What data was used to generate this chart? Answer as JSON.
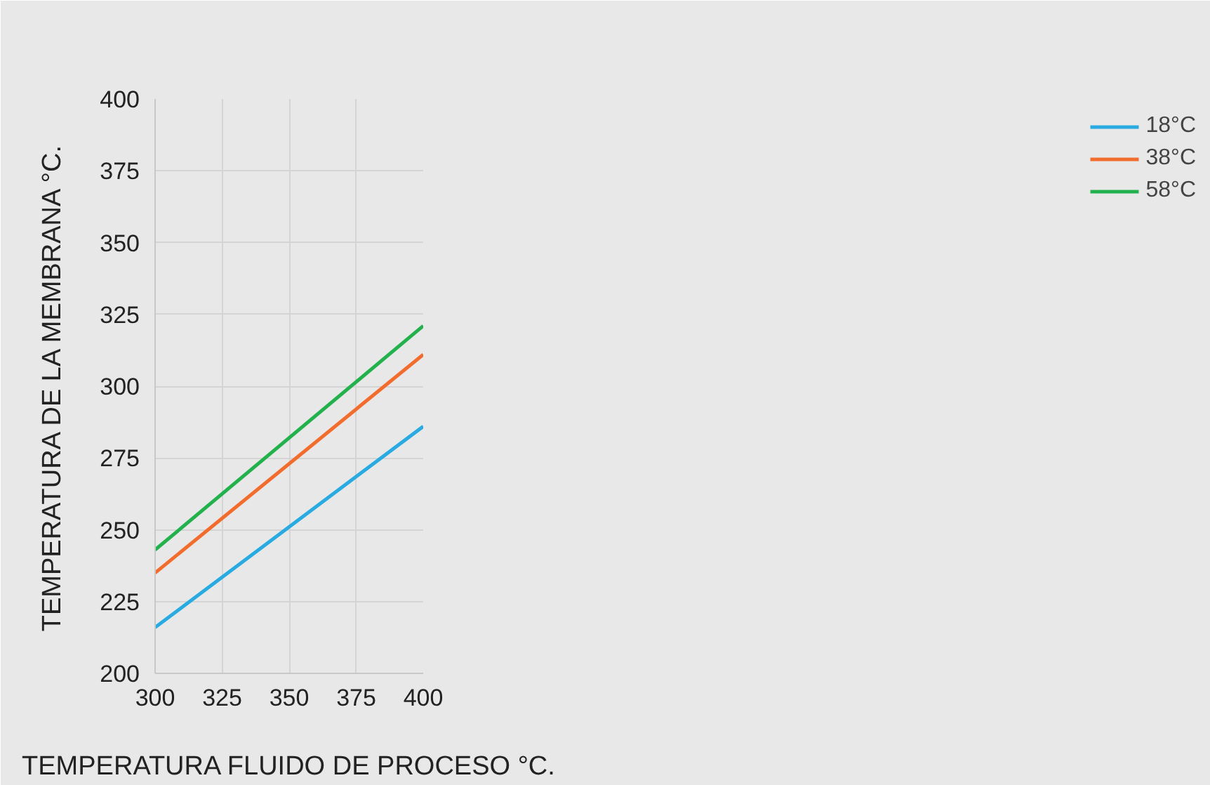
{
  "chart_data": {
    "type": "line",
    "xlabel": "TEMPERATURA FLUIDO DE PROCESO °C.",
    "ylabel": "TEMPERATURA DE LA MEMBRANA °C.",
    "x": [
      300,
      400
    ],
    "series": [
      {
        "name": "18°C",
        "color": "#29abe2",
        "values": [
          216,
          286
        ]
      },
      {
        "name": "38°C",
        "color": "#f26d2d",
        "values": [
          235,
          311
        ]
      },
      {
        "name": "58°C",
        "color": "#22b14c",
        "values": [
          243,
          321
        ]
      }
    ],
    "xlim": [
      300,
      400
    ],
    "xticks": [
      300,
      325,
      350,
      375,
      400
    ],
    "ylim": [
      200,
      400
    ],
    "yticks": [
      200,
      225,
      250,
      275,
      300,
      325,
      350,
      375,
      400
    ],
    "grid": true,
    "legend": "right",
    "marker": "none",
    "line_style": "solid"
  }
}
